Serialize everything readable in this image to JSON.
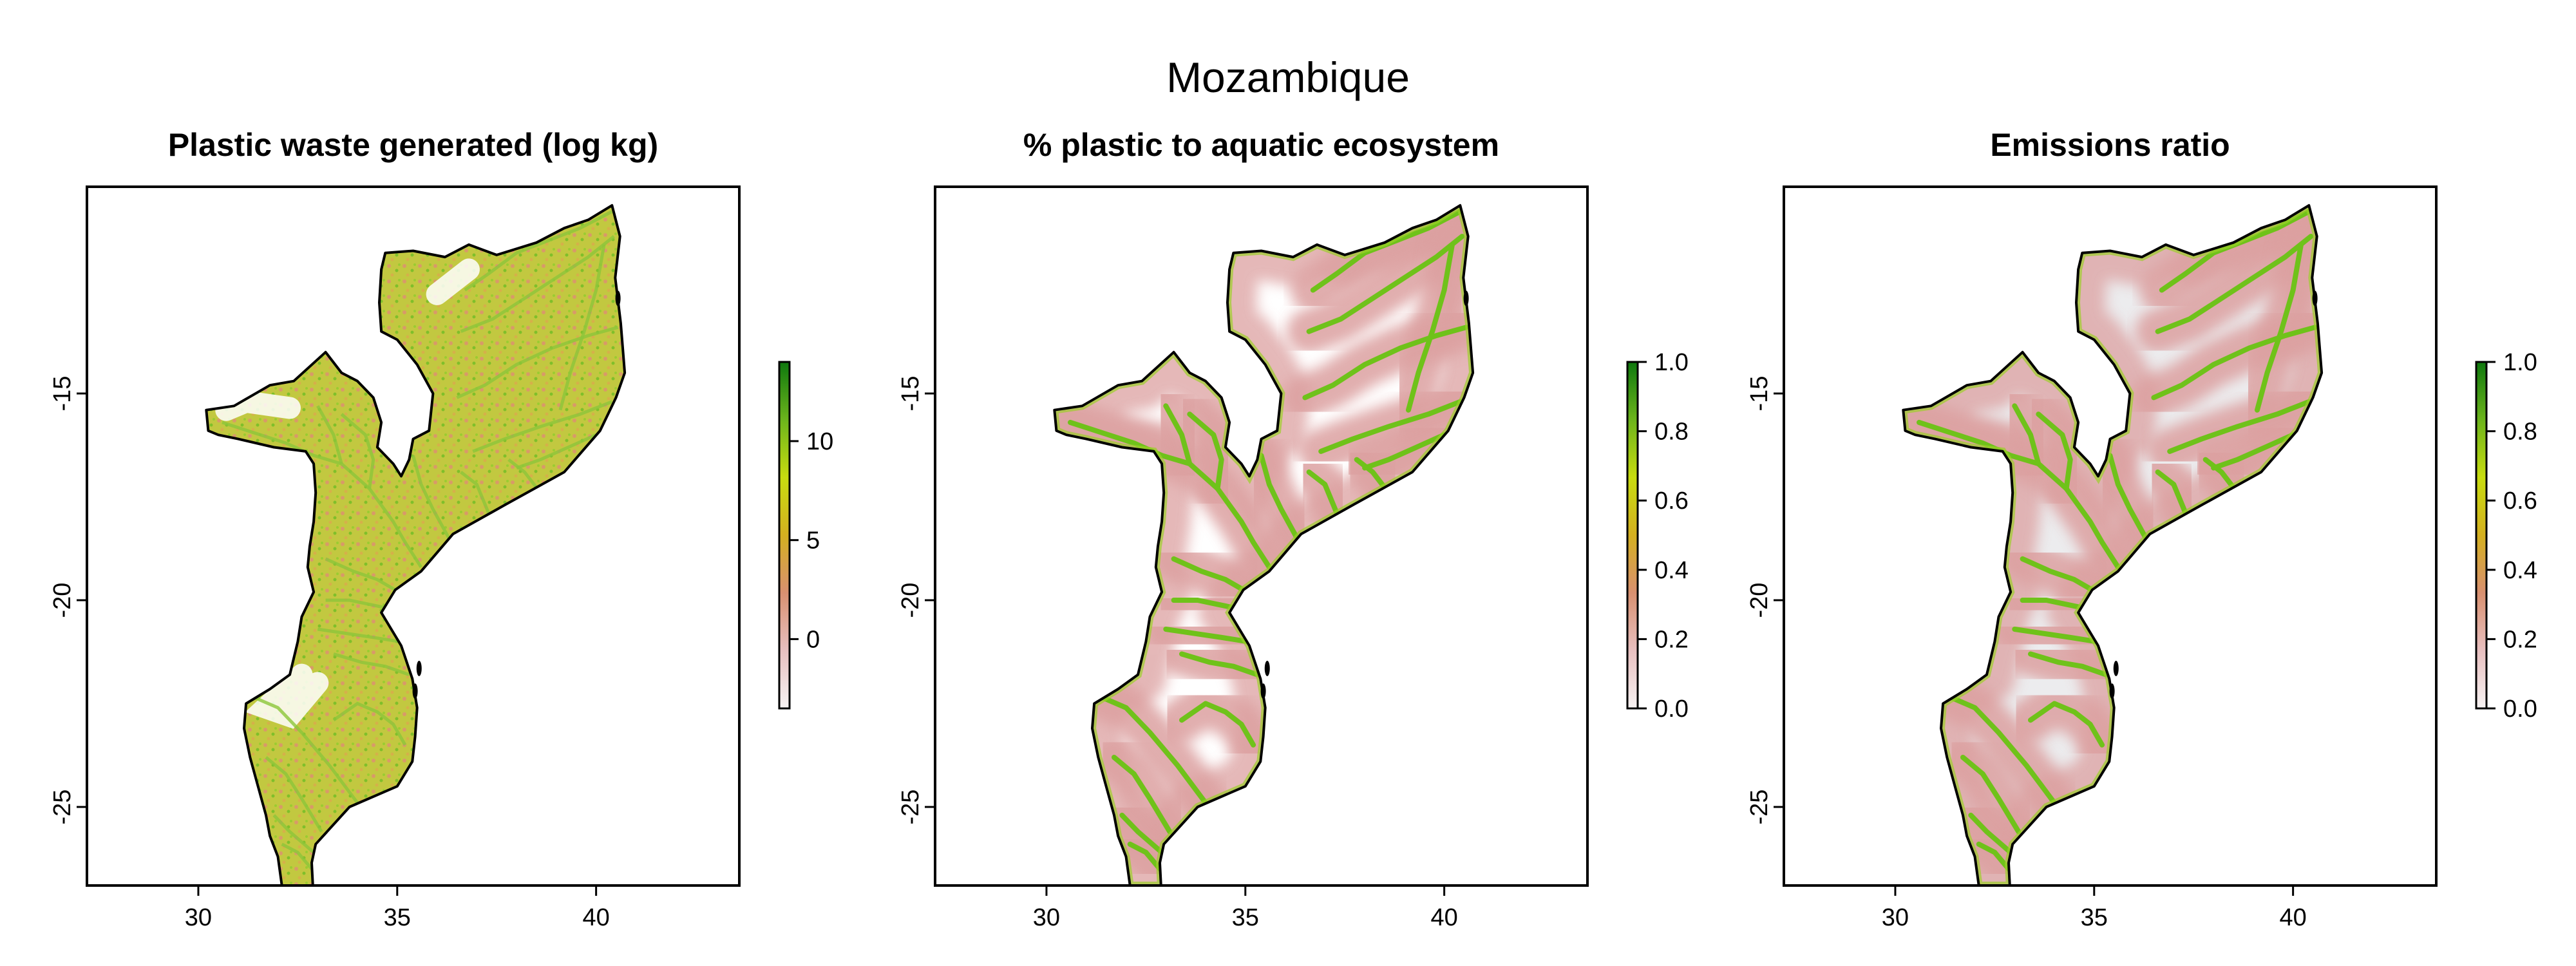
{
  "figure": {
    "title": "Mozambique"
  },
  "axes": {
    "x_range": [
      27.2,
      43.6
    ],
    "y_range": [
      -26.9,
      -10.0
    ],
    "x_ticks": [
      30,
      35,
      40
    ],
    "x_tick_labels": [
      "30",
      "35",
      "40"
    ],
    "y_ticks": [
      -15,
      -20,
      -25
    ],
    "y_tick_labels": [
      "-15",
      "-20",
      "-25"
    ]
  },
  "panels": [
    {
      "title": "Plastic waste generated (log kg)",
      "fill": "waste",
      "legend": {
        "range": [
          -3.5,
          14
        ],
        "ticks": [
          10,
          5,
          0
        ],
        "tick_labels": [
          "10",
          "5",
          "0"
        ]
      }
    },
    {
      "title": "% plastic to aquatic ecosystem",
      "fill": "pct",
      "legend": {
        "range": [
          0,
          1
        ],
        "ticks": [
          1.0,
          0.8,
          0.6,
          0.4,
          0.2,
          0.0
        ],
        "tick_labels": [
          "1.0",
          "0.8",
          "0.6",
          "0.4",
          "0.2",
          "0.0"
        ]
      }
    },
    {
      "title": "Emissions ratio",
      "fill": "ratio",
      "legend": {
        "range": [
          0,
          1
        ],
        "ticks": [
          1.0,
          0.8,
          0.6,
          0.4,
          0.2,
          0.0
        ],
        "tick_labels": [
          "1.0",
          "0.8",
          "0.6",
          "0.4",
          "0.2",
          "0.0"
        ]
      }
    }
  ],
  "colors": {
    "outline": "#000000",
    "river": "#6fc21a",
    "waste_fill": "#b9cf3c",
    "waste_sparse": "#d8a070",
    "pct_halo": "#dca0a0",
    "ratio_bg": "#ececee"
  },
  "colorbar_stops": [
    "#f7f3f3",
    "#e8c0c0",
    "#d89070",
    "#d4b020",
    "#c8dc10",
    "#6cb41c",
    "#0e780e"
  ]
}
